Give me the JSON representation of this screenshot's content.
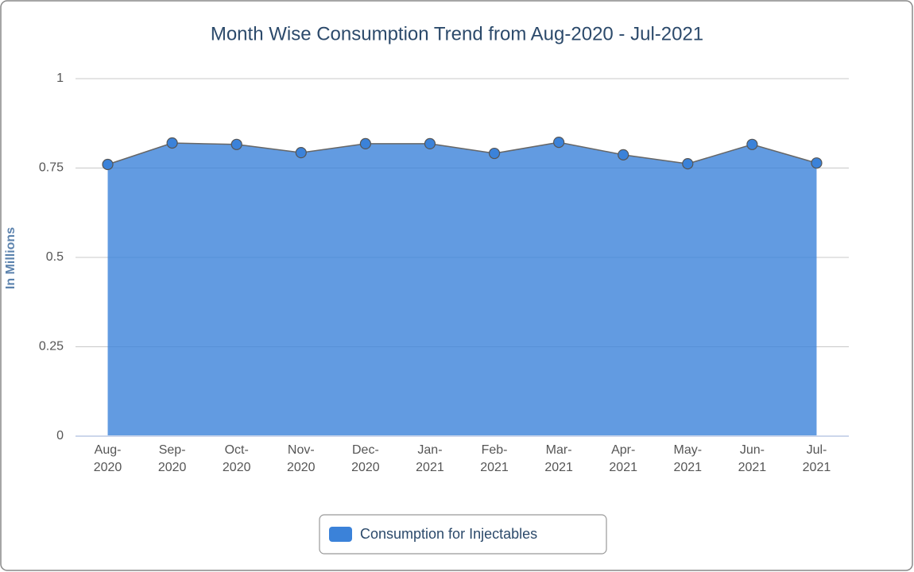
{
  "chart_data": {
    "type": "area",
    "title": "Month Wise Consumption Trend from Aug-2020 - Jul-2021",
    "y_label": "In Millions",
    "categories": [
      "Aug-2020",
      "Sep-2020",
      "Oct-2020",
      "Nov-2020",
      "Dec-2020",
      "Jan-2021",
      "Feb-2021",
      "Mar-2021",
      "Apr-2021",
      "May-2021",
      "Jun-2021",
      "Jul-2021"
    ],
    "series": [
      {
        "name": "Consumption for Injectables",
        "color": "#3b82d9",
        "values": [
          0.76,
          0.82,
          0.816,
          0.793,
          0.818,
          0.818,
          0.791,
          0.822,
          0.787,
          0.762,
          0.816,
          0.764
        ]
      }
    ],
    "ylim": [
      0,
      1
    ],
    "yticks": [
      0,
      0.25,
      0.5,
      0.75,
      1
    ],
    "grid": true,
    "legend": "bottom"
  }
}
